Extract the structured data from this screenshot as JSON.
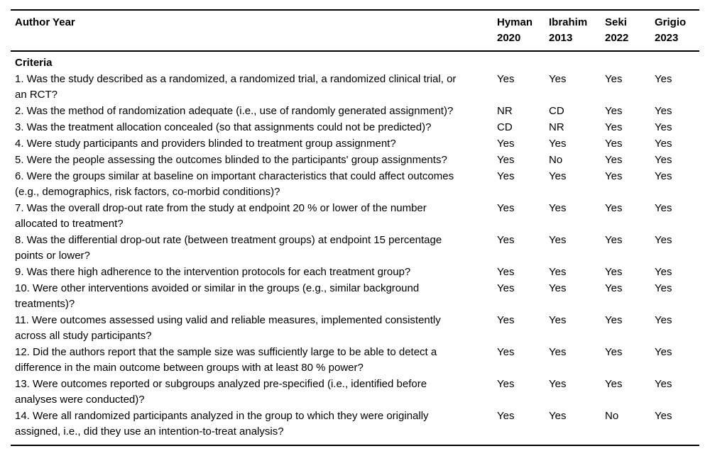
{
  "page": {
    "background_color": "#ffffff",
    "text_color": "#000000",
    "rule_color": "#000000"
  },
  "table": {
    "header": {
      "row_label": "Author Year",
      "studies": [
        {
          "name": "Hyman",
          "year": "2020"
        },
        {
          "name": "Ibrahim",
          "year": "2013"
        },
        {
          "name": "Seki",
          "year": "2022"
        },
        {
          "name": "Grigio",
          "year": "2023"
        }
      ]
    },
    "section_label": "Criteria",
    "rows": [
      {
        "criterion": "1. Was the study described as a randomized, a randomized trial, a randomized clinical trial, or an RCT?",
        "values": [
          "Yes",
          "Yes",
          "Yes",
          "Yes"
        ]
      },
      {
        "criterion": "2. Was the method of randomization adequate (i.e., use of randomly generated assignment)?",
        "values": [
          "NR",
          "CD",
          "Yes",
          "Yes"
        ]
      },
      {
        "criterion": "3. Was the treatment allocation concealed (so that assignments could not be predicted)?",
        "values": [
          "CD",
          "NR",
          "Yes",
          "Yes"
        ]
      },
      {
        "criterion": "4. Were study participants and providers blinded to treatment group assignment?",
        "values": [
          "Yes",
          "Yes",
          "Yes",
          "Yes"
        ]
      },
      {
        "criterion": "5. Were the people assessing the outcomes blinded to the participants' group assignments?",
        "values": [
          "Yes",
          "No",
          "Yes",
          "Yes"
        ]
      },
      {
        "criterion": "6. Were the groups similar at baseline on important characteristics that could affect outcomes (e.g., demographics, risk factors, co-morbid conditions)?",
        "values": [
          "Yes",
          "Yes",
          "Yes",
          "Yes"
        ]
      },
      {
        "criterion": "7. Was the overall drop-out rate from the study at endpoint 20 % or lower of the number allocated to treatment?",
        "values": [
          "Yes",
          "Yes",
          "Yes",
          "Yes"
        ]
      },
      {
        "criterion": "8. Was the differential drop-out rate (between treatment groups) at endpoint 15 percentage points or lower?",
        "values": [
          "Yes",
          "Yes",
          "Yes",
          "Yes"
        ]
      },
      {
        "criterion": "9. Was there high adherence to the intervention protocols for each treatment group?",
        "values": [
          "Yes",
          "Yes",
          "Yes",
          "Yes"
        ]
      },
      {
        "criterion": "10. Were other interventions avoided or similar in the groups (e.g., similar background treatments)?",
        "values": [
          "Yes",
          "Yes",
          "Yes",
          "Yes"
        ]
      },
      {
        "criterion": "11. Were outcomes assessed using valid and reliable measures, implemented consistently across all study participants?",
        "values": [
          "Yes",
          "Yes",
          "Yes",
          "Yes"
        ]
      },
      {
        "criterion": "12. Did the authors report that the sample size was sufficiently large to be able to detect a difference in the main outcome between groups with at least 80 % power?",
        "values": [
          "Yes",
          "Yes",
          "Yes",
          "Yes"
        ]
      },
      {
        "criterion": "13. Were outcomes reported or subgroups analyzed pre-specified (i.e., identified before analyses were conducted)?",
        "values": [
          "Yes",
          "Yes",
          "Yes",
          "Yes"
        ]
      },
      {
        "criterion": "14. Were all randomized participants analyzed in the group to which they were originally assigned, i.e., did they use an intention-to-treat analysis?",
        "values": [
          "Yes",
          "Yes",
          "No",
          "Yes"
        ]
      }
    ]
  }
}
